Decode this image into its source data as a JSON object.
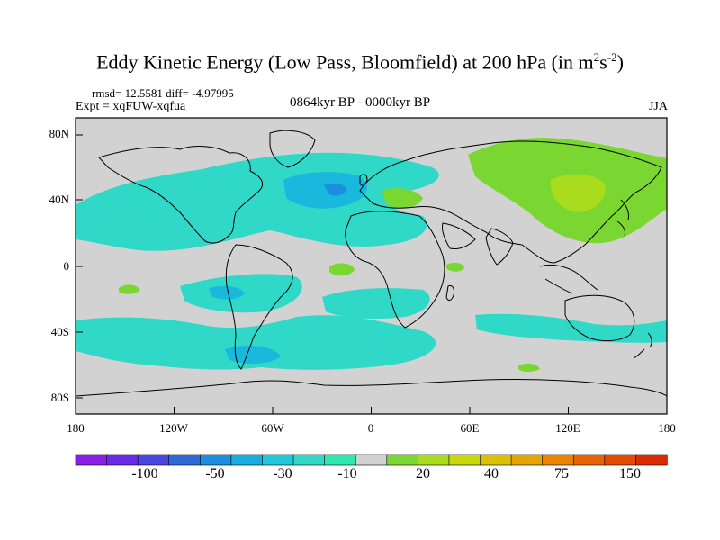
{
  "title": {
    "main": "Eddy Kinetic Energy (Low Pass, Bloomfield) at 200 hPa (in m",
    "sup1": "2",
    "mid": "s",
    "sup2": "-2",
    "end": ")"
  },
  "stats": "rmsd= 12.5581 diff= -4.97995",
  "expt": "Expt = xqFUW-xqfua",
  "period": "0864kyr BP - 0000kyr BP",
  "season": "JJA",
  "lat_labels": [
    "80N",
    "40N",
    "0",
    "40S",
    "80S"
  ],
  "lon_labels": [
    "180",
    "120W",
    "60W",
    "0",
    "60E",
    "120E",
    "180"
  ],
  "colorbar": {
    "colors": [
      "#8a1ee6",
      "#6a28e8",
      "#4a46e2",
      "#2e6ad8",
      "#1a8ee0",
      "#16aee0",
      "#22c8dc",
      "#30d8c8",
      "#2ee8b0",
      "#d2d2d2",
      "#7ad630",
      "#a8dc1c",
      "#c8d80a",
      "#ddc000",
      "#e8a400",
      "#ec8400",
      "#e86400",
      "#e44a00",
      "#dc2a00"
    ],
    "labels": [
      "-100",
      "-50",
      "-30",
      "-10",
      "20",
      "40",
      "75",
      "150"
    ]
  },
  "colors": {
    "neutral": "#d2d2d2",
    "negative_light": "#30d8c8",
    "negative_mid": "#1ab8dc",
    "negative_strong": "#1a8ee0",
    "positive_light": "#7ad630",
    "positive_mid": "#a8dc1c"
  }
}
